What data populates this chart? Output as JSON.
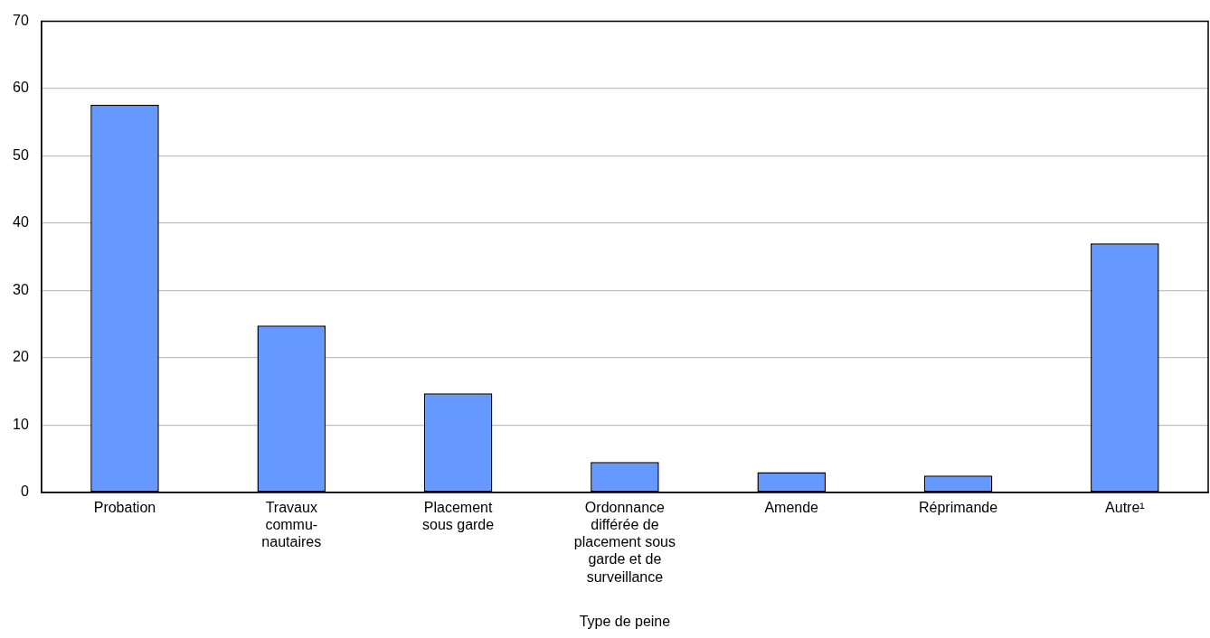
{
  "chart_data": {
    "type": "bar",
    "xlabel": "Type de peine",
    "categories": [
      "Probation",
      "Travaux\ncommu-\nnautaires",
      "Placement\nsous garde",
      "Ordonnance\ndifférée de\nplacement sous\ngarde et de\nsurveillance",
      "Amende",
      "Réprimande",
      "Autre¹"
    ],
    "values": [
      57.6,
      24.8,
      14.7,
      4.5,
      3.0,
      2.5,
      37.0
    ],
    "color": "#6699ff",
    "ylim": [
      0,
      70
    ],
    "yticks": [
      0,
      10,
      20,
      30,
      40,
      50,
      60,
      70
    ],
    "grid": "y",
    "legend": false
  }
}
